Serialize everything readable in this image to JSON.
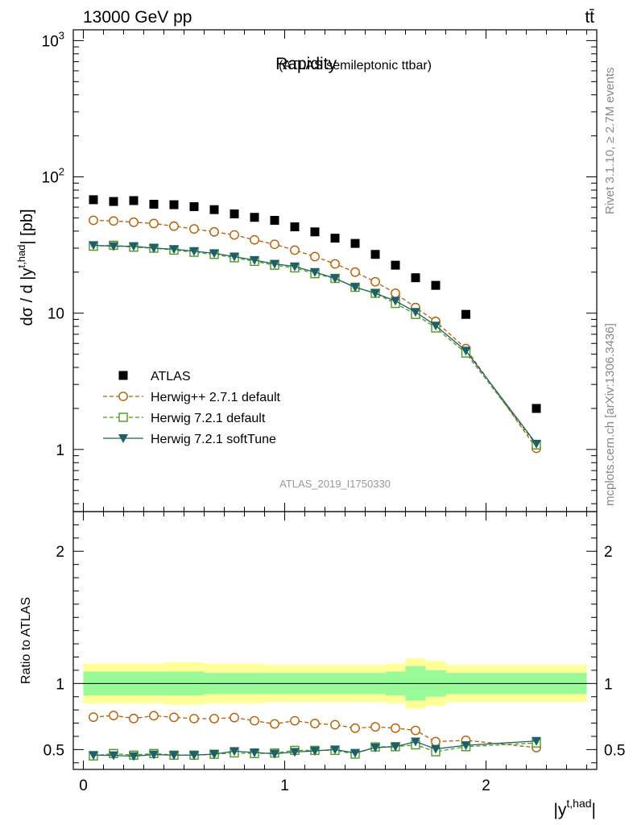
{
  "header": {
    "energy": "13000 GeV pp",
    "process": "tt̄",
    "side_rivet": "Rivet 3.1.10, ≥ 2.7M events",
    "side_mcplots": "mcplots.cern.ch [arXiv:1306.3436]"
  },
  "chart_data": {
    "type": "scatter",
    "title": "Rapidity",
    "subtitle": "(ATLAS semileptonic ttbar)",
    "analysis_id": "ATLAS_2019_I1750330",
    "xlabel": "|y^{t,had}|",
    "xlabel_base": "|y",
    "xlabel_sup": "t,had",
    "xlabel_close": "|",
    "ylabel_main": "dσ / d |y^{t,had}| [pb]",
    "ylabel_main_base": "dσ / d |y",
    "ylabel_main_sup": "t,had",
    "ylabel_main_close": "| [pb]",
    "ylabel_ratio": "Ratio to ATLAS",
    "xlim": [
      -0.05,
      2.55
    ],
    "ylim_main": [
      0.35,
      1200
    ],
    "ylim_ratio": [
      0.35,
      2.3
    ],
    "log_y_main": true,
    "x_ticks": [
      {
        "value": 0,
        "label": "0"
      },
      {
        "value": 1,
        "label": "1"
      },
      {
        "value": 2,
        "label": "2"
      }
    ],
    "y_ticks_main": [
      {
        "value": 1,
        "label": "1"
      },
      {
        "value": 10,
        "label": "10"
      },
      {
        "value": 100,
        "label": "10",
        "sup": "2"
      },
      {
        "value": 1000,
        "label": "10",
        "sup": "3"
      }
    ],
    "y_ticks_ratio": [
      {
        "value": 0.5,
        "label": "0.5"
      },
      {
        "value": 1,
        "label": "1"
      },
      {
        "value": 2,
        "label": "2"
      }
    ],
    "bins": [
      0,
      0.1,
      0.2,
      0.3,
      0.4,
      0.5,
      0.6,
      0.7,
      0.8,
      0.9,
      1.0,
      1.1,
      1.2,
      1.3,
      1.4,
      1.5,
      1.6,
      1.7,
      1.8,
      2.0,
      2.5
    ],
    "x": [
      0.05,
      0.15,
      0.25,
      0.35,
      0.45,
      0.55,
      0.65,
      0.75,
      0.85,
      0.95,
      1.05,
      1.15,
      1.25,
      1.35,
      1.45,
      1.55,
      1.65,
      1.75,
      1.9,
      2.25
    ],
    "ratio_band": {
      "inner": [
        0.09,
        0.09,
        0.09,
        0.09,
        0.09,
        0.09,
        0.08,
        0.08,
        0.08,
        0.08,
        0.08,
        0.08,
        0.08,
        0.08,
        0.08,
        0.09,
        0.13,
        0.1,
        0.08,
        0.08
      ],
      "outer": [
        0.15,
        0.15,
        0.15,
        0.15,
        0.16,
        0.16,
        0.15,
        0.15,
        0.15,
        0.14,
        0.14,
        0.14,
        0.14,
        0.14,
        0.14,
        0.15,
        0.19,
        0.17,
        0.14,
        0.14
      ],
      "inner_color": "#98fb98",
      "outer_color": "#ffff99"
    },
    "legend_position": "lower-left",
    "series": [
      {
        "name": "ATLAS",
        "style": "data",
        "color": "#000000",
        "marker": "square-filled",
        "values": [
          68,
          66,
          67,
          63,
          62.5,
          60.5,
          57.5,
          53.5,
          50.5,
          48,
          43,
          39.5,
          35.5,
          32.5,
          27,
          22.5,
          18.2,
          16,
          9.8,
          2.0
        ],
        "ratio": [
          1,
          1,
          1,
          1,
          1,
          1,
          1,
          1,
          1,
          1,
          1,
          1,
          1,
          1,
          1,
          1,
          1,
          1,
          1,
          1
        ]
      },
      {
        "name": "Herwig++ 2.7.1 default",
        "style": "dashed",
        "color": "#b85c00",
        "marker": "circle-open",
        "values": [
          48,
          47.5,
          46.5,
          45.5,
          43.5,
          41.5,
          39.5,
          37.5,
          34.5,
          32,
          29,
          26,
          23,
          20,
          17,
          14,
          11,
          8.7,
          5.5,
          1.02
        ],
        "ratio": [
          0.745,
          0.758,
          0.735,
          0.756,
          0.744,
          0.734,
          0.734,
          0.742,
          0.718,
          0.694,
          0.718,
          0.697,
          0.688,
          0.662,
          0.672,
          0.662,
          0.645,
          0.56,
          0.57,
          0.515
        ]
      },
      {
        "name": "Herwig 7.2.1 default",
        "style": "dashed",
        "color": "#4b9a1f",
        "marker": "square-open",
        "values": [
          31,
          31.5,
          30.5,
          30,
          29,
          28,
          27,
          25.5,
          24,
          22.5,
          21.5,
          19.5,
          18,
          15.5,
          14,
          11.8,
          9.8,
          7.8,
          5.1,
          1.08
        ],
        "ratio": [
          0.452,
          0.47,
          0.458,
          0.47,
          0.458,
          0.458,
          0.465,
          0.475,
          0.47,
          0.474,
          0.494,
          0.494,
          0.494,
          0.466,
          0.52,
          0.522,
          0.536,
          0.484,
          0.522,
          0.55
        ]
      },
      {
        "name": "Herwig 7.2.1 softTune",
        "style": "solid",
        "color": "#1f5f6a",
        "marker": "triangle-down-filled",
        "values": [
          31.5,
          31,
          31,
          30,
          29.5,
          28.5,
          27.5,
          26,
          24.5,
          23,
          22,
          20,
          18,
          15.5,
          14,
          12.3,
          10.2,
          8.1,
          5.3,
          1.1
        ],
        "ratio": [
          0.458,
          0.456,
          0.45,
          0.462,
          0.458,
          0.458,
          0.466,
          0.488,
          0.478,
          0.468,
          0.482,
          0.49,
          0.5,
          0.474,
          0.515,
          0.522,
          0.56,
          0.505,
          0.532,
          0.565
        ]
      }
    ]
  }
}
